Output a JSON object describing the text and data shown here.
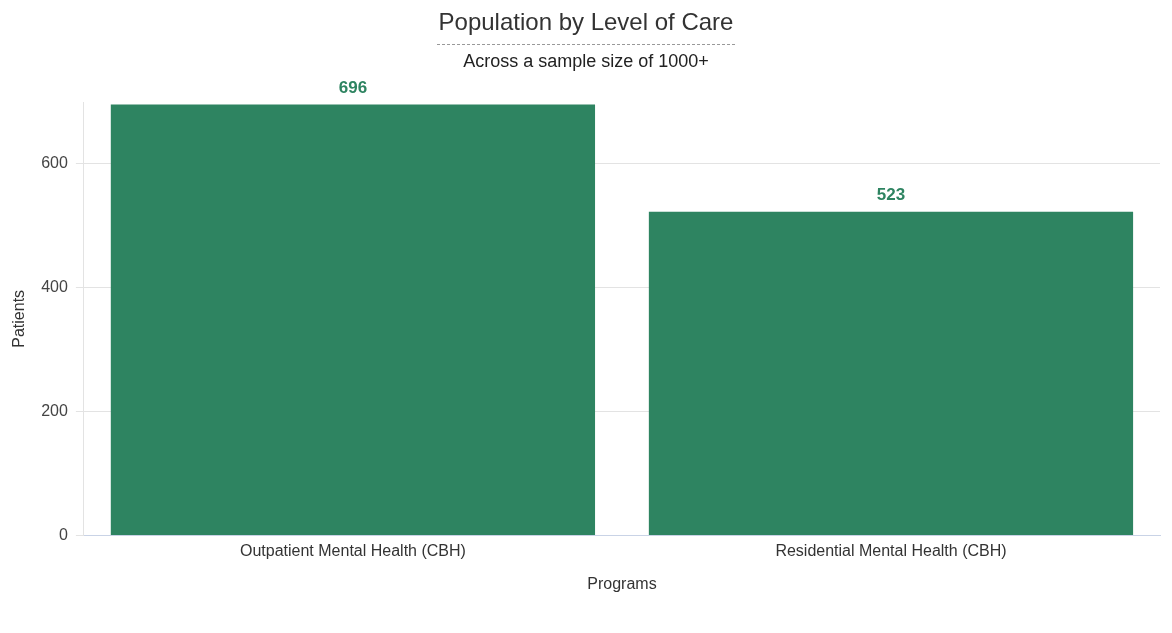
{
  "chart_data": {
    "type": "bar",
    "title": "Population by Level of Care",
    "subtitle": "Across a sample size of 1000+",
    "xlabel": "Programs",
    "ylabel": "Patients",
    "categories": [
      "Outpatient Mental Health (CBH)",
      "Residential Mental Health (CBH)"
    ],
    "values": [
      696,
      523
    ],
    "color": "#2e8461",
    "ylim": [
      0,
      700
    ],
    "yticks": [
      0,
      200,
      400,
      600
    ],
    "grid": "y",
    "legend": false,
    "data_labels": true
  }
}
